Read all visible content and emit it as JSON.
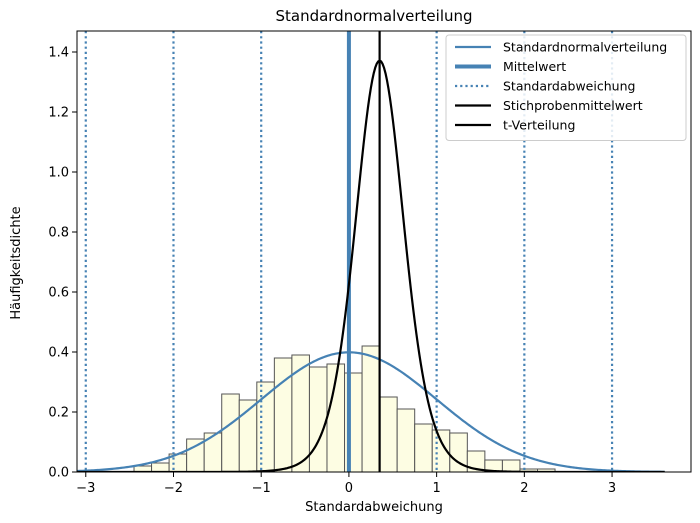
{
  "chart_data": {
    "type": "bar",
    "title": "Standardnormalverteilung",
    "xlabel": "Standardabweichung",
    "ylabel": "Häufigkeitsdichte",
    "xlim": [
      -3.1,
      3.9
    ],
    "ylim": [
      0,
      1.47
    ],
    "xticks": [
      -3,
      -2,
      -1,
      0,
      1,
      2,
      3
    ],
    "xtick_labels": [
      "−3",
      "−2",
      "−1",
      "0",
      "1",
      "2",
      "3"
    ],
    "yticks": [
      0.0,
      0.2,
      0.4,
      0.6,
      0.8,
      1.0,
      1.2,
      1.4
    ],
    "ytick_labels": [
      "0.0",
      "0.2",
      "0.4",
      "0.6",
      "0.8",
      "1.0",
      "1.2",
      "1.4"
    ],
    "grid": false,
    "legend_position": "top-right",
    "histogram": {
      "bin_width": 0.2,
      "bin_starts": [
        -2.45,
        -2.25,
        -2.05,
        -1.85,
        -1.65,
        -1.45,
        -1.25,
        -1.05,
        -0.85,
        -0.65,
        -0.45,
        -0.25,
        -0.05,
        0.15,
        0.35,
        0.55,
        0.75,
        0.95,
        1.15,
        1.35,
        1.55,
        1.75,
        1.95,
        2.15
      ],
      "values": [
        0.02,
        0.03,
        0.06,
        0.11,
        0.13,
        0.26,
        0.24,
        0.3,
        0.38,
        0.39,
        0.35,
        0.36,
        0.33,
        0.42,
        0.25,
        0.21,
        0.16,
        0.14,
        0.13,
        0.07,
        0.04,
        0.04,
        0.01,
        0.01
      ],
      "fill_color": "#fdfde3",
      "edge_color": "#555555"
    },
    "series": [
      {
        "name": "Standardnormalverteilung",
        "kind": "normal-pdf",
        "mean": 0,
        "sd": 1,
        "x_range": [
          -3.1,
          3.6
        ],
        "color": "#4682b4",
        "style": "solid"
      },
      {
        "name": "Mittelwert",
        "kind": "vline",
        "x": 0,
        "color": "#4682b4",
        "style": "thick"
      },
      {
        "name": "Standardabweichung",
        "kind": "vlines",
        "x": [
          -3,
          -2,
          -1,
          1,
          2,
          3
        ],
        "color": "#4682b4",
        "style": "dotted"
      },
      {
        "name": "Stichprobenmittelwert",
        "kind": "vline",
        "x": 0.35,
        "color": "#000000",
        "style": "solid"
      },
      {
        "name": "t-Verteilung",
        "kind": "t-pdf",
        "center": 0.35,
        "scale": 0.283,
        "df": 9,
        "x_range": [
          -3.1,
          3.6
        ],
        "color": "#000000",
        "style": "solid"
      }
    ]
  }
}
